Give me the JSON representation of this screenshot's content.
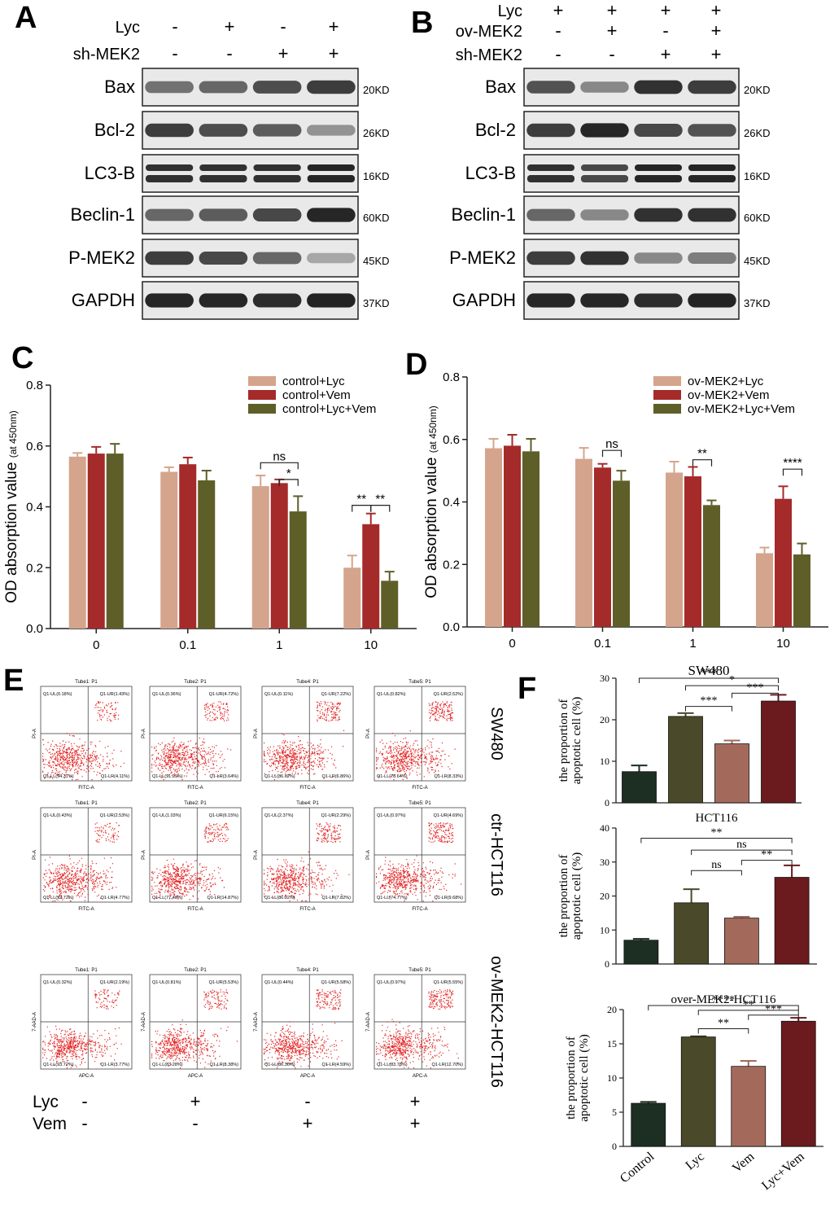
{
  "panel_letters": [
    "A",
    "B",
    "C",
    "D",
    "E",
    "F"
  ],
  "blot_common": {
    "labels": [
      "Bax",
      "Bcl-2",
      "LC3-B",
      "Beclin-1",
      "P-MEK2",
      "GAPDH"
    ],
    "sizes": [
      "20KD",
      "26KD",
      "16KD",
      "60KD",
      "45KD",
      "37KD"
    ]
  },
  "panel_A": {
    "cond_labels": [
      "Lyc",
      "sh-MEK2"
    ],
    "signs": [
      [
        "-",
        "+",
        "-",
        "+"
      ],
      [
        "-",
        "-",
        "+",
        "+"
      ]
    ],
    "intensity": [
      [
        0.55,
        0.6,
        0.72,
        0.8
      ],
      [
        0.8,
        0.72,
        0.65,
        0.4
      ],
      [
        0.85,
        0.85,
        0.85,
        0.9
      ],
      [
        0.6,
        0.65,
        0.75,
        0.9
      ],
      [
        0.8,
        0.75,
        0.6,
        0.3
      ],
      [
        0.9,
        0.9,
        0.88,
        0.92
      ]
    ]
  },
  "panel_B": {
    "cond_labels": [
      "Lyc",
      "ov-MEK2",
      "sh-MEK2"
    ],
    "signs": [
      [
        "+",
        "+",
        "+",
        "+"
      ],
      [
        "-",
        "+",
        "-",
        "+"
      ],
      [
        "-",
        "-",
        "+",
        "+"
      ]
    ],
    "intensity": [
      [
        0.7,
        0.45,
        0.85,
        0.8
      ],
      [
        0.8,
        0.9,
        0.75,
        0.7
      ],
      [
        0.85,
        0.75,
        0.9,
        0.9
      ],
      [
        0.6,
        0.45,
        0.85,
        0.85
      ],
      [
        0.8,
        0.85,
        0.45,
        0.5
      ],
      [
        0.9,
        0.9,
        0.88,
        0.92
      ]
    ]
  },
  "panel_C": {
    "chart_data": {
      "type": "bar",
      "ylabel": "OD absorption value",
      "ylabel_unit": "(at 450nm)",
      "categories": [
        "0",
        "0.1",
        "1",
        "10"
      ],
      "ylim": [
        0,
        0.8
      ],
      "yticks": [
        "0.0",
        "0.2",
        "0.4",
        "0.6",
        "0.8"
      ],
      "legend_position": "top-right",
      "series": [
        {
          "name": "control+Lyc",
          "color": "#d5a48c",
          "values": [
            0.565,
            0.515,
            0.468,
            0.2
          ],
          "errors": [
            0.012,
            0.015,
            0.035,
            0.04
          ]
        },
        {
          "name": "control+Vem",
          "color": "#a52a2a",
          "values": [
            0.575,
            0.54,
            0.478,
            0.343
          ],
          "errors": [
            0.022,
            0.022,
            0.012,
            0.035
          ]
        },
        {
          "name": "control+Lyc+Vem",
          "color": "#5e5e28",
          "values": [
            0.575,
            0.487,
            0.385,
            0.157
          ],
          "errors": [
            0.032,
            0.032,
            0.05,
            0.03
          ]
        }
      ],
      "annotations": [
        {
          "cat": 2,
          "from": 0,
          "to": 2,
          "label": "ns",
          "y": 0.545
        },
        {
          "cat": 2,
          "from": 1,
          "to": 2,
          "label": "*",
          "y": 0.49
        },
        {
          "cat": 3,
          "from": 0,
          "to": 1,
          "label": "**",
          "y": 0.405
        },
        {
          "cat": 3,
          "from": 1,
          "to": 2,
          "label": "**",
          "y": 0.405
        }
      ]
    }
  },
  "panel_D": {
    "chart_data": {
      "type": "bar",
      "ylabel": "OD absorption value",
      "ylabel_unit": "(at 450nm)",
      "categories": [
        "0",
        "0.1",
        "1",
        "10"
      ],
      "ylim": [
        0,
        0.8
      ],
      "yticks": [
        "0.0",
        "0.2",
        "0.4",
        "0.6",
        "0.8"
      ],
      "legend_position": "top-right",
      "series": [
        {
          "name": "ov-MEK2+Lyc",
          "color": "#d5a48c",
          "values": [
            0.572,
            0.538,
            0.494,
            0.236
          ],
          "errors": [
            0.03,
            0.035,
            0.035,
            0.018
          ]
        },
        {
          "name": "ov-MEK2+Vem",
          "color": "#a52a2a",
          "values": [
            0.58,
            0.51,
            0.482,
            0.41
          ],
          "errors": [
            0.035,
            0.012,
            0.03,
            0.04
          ]
        },
        {
          "name": "ov-MEK2+Lyc+Vem",
          "color": "#5e5e28",
          "values": [
            0.562,
            0.468,
            0.39,
            0.232
          ],
          "errors": [
            0.04,
            0.032,
            0.015,
            0.035
          ]
        }
      ],
      "annotations": [
        {
          "cat": 1,
          "from": 1,
          "to": 2,
          "label": "ns",
          "y": 0.565
        },
        {
          "cat": 2,
          "from": 1,
          "to": 2,
          "label": "**",
          "y": 0.535
        },
        {
          "cat": 3,
          "from": 1,
          "to": 2,
          "label": "****",
          "y": 0.505
        }
      ]
    }
  },
  "panel_E": {
    "row_labels": [
      "SW480",
      "ctr-HCT116",
      "ov-MEK2-HCT116"
    ],
    "tube_titles": [
      "Tube1: P1",
      "Tube2: P1",
      "Tube4: P1",
      "Tube5: P1"
    ],
    "x_axis_labels": [
      "FITC-A",
      "FITC-A",
      "APC-A"
    ],
    "y_axis_labels": [
      "PI-A",
      "PI-A",
      "7-AAD-A"
    ],
    "bottom_labels": [
      "Lyc",
      "Vem"
    ],
    "bottom_signs": [
      [
        "-",
        "+",
        "-",
        "+"
      ],
      [
        "-",
        "-",
        "+",
        "+"
      ]
    ],
    "quadrants": [
      [
        [
          "Q1-UL(0.18%)",
          "Q1-UR(1.43%)",
          "Q1-LL(94.37%)",
          "Q1-LR(4.11%)"
        ],
        [
          "Q1-UL(0.36%)",
          "Q1-UR(4.72%)",
          "Q1-LL(91.29%)",
          "Q1-LR(3.64%)"
        ],
        [
          "Q1-UL(0.11%)",
          "Q1-UR(7.22%)",
          "Q1-LL(86.62%)",
          "Q1-LR(6.86%)"
        ],
        [
          "Q1-UL(0.82%)",
          "Q1-UR(2.52%)",
          "Q1-LL(78.64%)",
          "Q1-LR(8.33%)"
        ]
      ],
      [
        [
          "Q1-UL(0.43%)",
          "Q1-UR(2.53%)",
          "Q1-LL(92.72%)",
          "Q1-LR(4.77%)"
        ],
        [
          "Q1-UL(1.03%)",
          "Q1-UR(6.15%)",
          "Q1-LL(77.48%)",
          "Q1-LR(14.87%)"
        ],
        [
          "Q1-UL(2.37%)",
          "Q1-UR(2.29%)",
          "Q1-LL(86.92%)",
          "Q1-LR(7.82%)"
        ],
        [
          "Q1-UL(0.97%)",
          "Q1-UR(4.69%)",
          "Q1-LL(74.77%)",
          "Q1-LR(9.68%)"
        ]
      ],
      [
        [
          "Q1-UL(0.32%)",
          "Q1-UR(2.19%)",
          "Q1-LL(93.72%)",
          "Q1-LR(3.77%)"
        ],
        [
          "Q1-UL(0.81%)",
          "Q1-UR(5.53%)",
          "Q1-LL(83.28%)",
          "Q1-LR(8.38%)"
        ],
        [
          "Q1-UL(0.44%)",
          "Q1-UR(5.58%)",
          "Q1-LL(86.30%)",
          "Q1-LR(4.59%)"
        ],
        [
          "Q1-UL(0.97%)",
          "Q1-UR(5.55%)",
          "Q1-LL(83.78%)",
          "Q1-LR(12.70%)"
        ]
      ]
    ]
  },
  "panel_F": {
    "ylabel": [
      "the proportion of",
      "apoptotic cell (%)"
    ],
    "categories": [
      "Control",
      "Lyc",
      "Vem",
      "Lyc+Vem"
    ],
    "colors": [
      "#1d2e22",
      "#4a4a2a",
      "#a36a5c",
      "#6b1a1e"
    ],
    "charts": [
      {
        "title": "SW480",
        "ylim": [
          0,
          30
        ],
        "yticks": [
          "0",
          "10",
          "20",
          "30"
        ],
        "values": [
          7.5,
          20.8,
          14.2,
          24.5
        ],
        "errors": [
          1.5,
          0.8,
          0.8,
          1.5
        ],
        "annotations": [
          {
            "from": 0,
            "to": 3,
            "label": "***",
            "y": 30
          },
          {
            "from": 1,
            "to": 3,
            "label": "*",
            "y": 28.2
          },
          {
            "from": 2,
            "to": 3,
            "label": "***",
            "y": 26.4
          },
          {
            "from": 1,
            "to": 2,
            "label": "***",
            "y": 23.2
          }
        ]
      },
      {
        "title": "HCT116",
        "ylim": [
          0,
          40
        ],
        "yticks": [
          "0",
          "10",
          "20",
          "30",
          "40"
        ],
        "values": [
          7,
          18,
          13.5,
          25.5
        ],
        "errors": [
          0.4,
          4,
          0.4,
          3.5
        ],
        "annotations": [
          {
            "from": 0,
            "to": 3,
            "label": "**",
            "y": 37
          },
          {
            "from": 1,
            "to": 3,
            "label": "ns",
            "y": 33.5
          },
          {
            "from": 2,
            "to": 3,
            "label": "**",
            "y": 30.5
          },
          {
            "from": 1,
            "to": 2,
            "label": "ns",
            "y": 27.5
          }
        ]
      },
      {
        "title": "over-MEK2-HCT116",
        "ylim": [
          0,
          20
        ],
        "yticks": [
          "0",
          "5",
          "10",
          "15",
          "20"
        ],
        "values": [
          6.3,
          16,
          11.7,
          18.3
        ],
        "errors": [
          0.2,
          0.1,
          0.8,
          0.5
        ],
        "annotations": [
          {
            "from": 0,
            "to": 3,
            "label": "****",
            "y": 20.6
          },
          {
            "from": 1,
            "to": 3,
            "label": "**",
            "y": 19.9
          },
          {
            "from": 2,
            "to": 3,
            "label": "***",
            "y": 19.2
          },
          {
            "from": 1,
            "to": 2,
            "label": "**",
            "y": 17.2
          }
        ]
      }
    ]
  }
}
